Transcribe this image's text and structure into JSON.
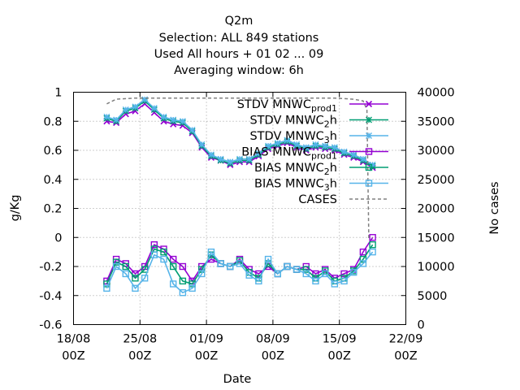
{
  "chart_data": {
    "type": "line",
    "title_lines": [
      "Q2m",
      "Selection: ALL    849 stations",
      "Used  All hours + 01 02 ... 09",
      "Averaging window:  6h"
    ],
    "xlabel": "Date",
    "ylabel": "g/Kg",
    "y2label": "No cases",
    "xlim": [
      "2024-08-18T00:00",
      "2024-09-22T00:00"
    ],
    "ylim": [
      -0.6,
      1.0
    ],
    "y2lim": [
      0,
      40000
    ],
    "x_ticks": [
      {
        "line1": "18/08",
        "line2": "00Z"
      },
      {
        "line1": "25/08",
        "line2": "00Z"
      },
      {
        "line1": "01/09",
        "line2": "00Z"
      },
      {
        "line1": "08/09",
        "line2": "00Z"
      },
      {
        "line1": "15/09",
        "line2": "00Z"
      },
      {
        "line1": "22/09",
        "line2": "00Z"
      }
    ],
    "y_ticks": [
      "-0.6",
      "-0.4",
      "-0.2",
      "0",
      "0.2",
      "0.4",
      "0.6",
      "0.8",
      "1"
    ],
    "y2_ticks": [
      "0",
      "5000",
      "10000",
      "15000",
      "20000",
      "25000",
      "30000",
      "35000",
      "40000"
    ],
    "grid": true,
    "legend_position": "top-right",
    "series": [
      {
        "name": "STDV MNWC_prod1",
        "name_base": "STDV MNWC",
        "name_sub": "prod1",
        "axis": "y",
        "color": "#9400d3",
        "marker": "x-cross",
        "x": [
          21.5,
          22.5,
          23.5,
          24.5,
          25.5,
          26.5,
          27.5,
          28.5,
          29.5,
          30.5,
          31.5,
          32.5,
          33.5,
          34.5,
          35.5,
          36.5,
          37.5,
          38.5,
          39.5,
          40.5,
          41.5,
          42.5,
          43.5,
          44.5,
          45.5,
          46.5,
          47.5,
          48.5,
          49.5
        ],
        "y": [
          0.8,
          0.79,
          0.85,
          0.87,
          0.92,
          0.86,
          0.8,
          0.78,
          0.77,
          0.72,
          0.62,
          0.55,
          0.53,
          0.5,
          0.52,
          0.52,
          0.56,
          0.61,
          0.63,
          0.65,
          0.62,
          0.6,
          0.62,
          0.61,
          0.6,
          0.57,
          0.55,
          0.52,
          0.48
        ]
      },
      {
        "name": "STDV MNWC_2h",
        "name_base": "STDV MNWC",
        "name_sub": "2",
        "name_suffix": "h",
        "axis": "y",
        "color": "#009e73",
        "marker": "star",
        "x": [
          21.5,
          22.5,
          23.5,
          24.5,
          25.5,
          26.5,
          27.5,
          28.5,
          29.5,
          30.5,
          31.5,
          32.5,
          33.5,
          34.5,
          35.5,
          36.5,
          37.5,
          38.5,
          39.5,
          40.5,
          41.5,
          42.5,
          43.5,
          44.5,
          45.5,
          46.5,
          47.5,
          48.5,
          49.5
        ],
        "y": [
          0.82,
          0.8,
          0.87,
          0.89,
          0.94,
          0.88,
          0.82,
          0.8,
          0.79,
          0.73,
          0.63,
          0.56,
          0.53,
          0.51,
          0.53,
          0.53,
          0.57,
          0.62,
          0.64,
          0.66,
          0.63,
          0.61,
          0.63,
          0.62,
          0.61,
          0.58,
          0.56,
          0.53,
          0.49
        ]
      },
      {
        "name": "STDV MNWC_3h",
        "name_base": "STDV MNWC",
        "name_sub": "3",
        "name_suffix": "h",
        "axis": "y",
        "color": "#56b4e9",
        "marker": "star",
        "x": [
          21.5,
          22.5,
          23.5,
          24.5,
          25.5,
          26.5,
          27.5,
          28.5,
          29.5,
          30.5,
          31.5,
          32.5,
          33.5,
          34.5,
          35.5,
          36.5,
          37.5,
          38.5,
          39.5,
          40.5,
          41.5,
          42.5,
          43.5,
          44.5,
          45.5,
          46.5,
          47.5,
          48.5,
          49.5
        ],
        "y": [
          0.83,
          0.81,
          0.88,
          0.9,
          0.95,
          0.89,
          0.83,
          0.81,
          0.8,
          0.74,
          0.64,
          0.57,
          0.54,
          0.52,
          0.54,
          0.54,
          0.58,
          0.63,
          0.65,
          0.67,
          0.64,
          0.62,
          0.64,
          0.63,
          0.62,
          0.59,
          0.57,
          0.54,
          0.5
        ]
      },
      {
        "name": "BIAS MNWC_prod1",
        "name_base": "BIAS MNWC",
        "name_sub": "prod1",
        "axis": "y",
        "color": "#9400d3",
        "marker": "open-square",
        "x": [
          21.5,
          22.5,
          23.5,
          24.5,
          25.5,
          26.5,
          27.5,
          28.5,
          29.5,
          30.5,
          31.5,
          32.5,
          33.5,
          34.5,
          35.5,
          36.5,
          37.5,
          38.5,
          39.5,
          40.5,
          41.5,
          42.5,
          43.5,
          44.5,
          45.5,
          46.5,
          47.5,
          48.5,
          49.5
        ],
        "y": [
          -0.3,
          -0.15,
          -0.18,
          -0.25,
          -0.2,
          -0.05,
          -0.08,
          -0.15,
          -0.2,
          -0.3,
          -0.2,
          -0.15,
          -0.18,
          -0.2,
          -0.15,
          -0.22,
          -0.25,
          -0.2,
          -0.25,
          -0.2,
          -0.22,
          -0.2,
          -0.25,
          -0.22,
          -0.28,
          -0.25,
          -0.22,
          -0.1,
          0.0
        ]
      },
      {
        "name": "BIAS MNWC_2h",
        "name_base": "BIAS MNWC",
        "name_sub": "2",
        "name_suffix": "h",
        "axis": "y",
        "color": "#009e73",
        "marker": "open-square",
        "x": [
          21.5,
          22.5,
          23.5,
          24.5,
          25.5,
          26.5,
          27.5,
          28.5,
          29.5,
          30.5,
          31.5,
          32.5,
          33.5,
          34.5,
          35.5,
          36.5,
          37.5,
          38.5,
          39.5,
          40.5,
          41.5,
          42.5,
          43.5,
          44.5,
          45.5,
          46.5,
          47.5,
          48.5,
          49.5
        ],
        "y": [
          -0.32,
          -0.17,
          -0.2,
          -0.28,
          -0.22,
          -0.08,
          -0.1,
          -0.2,
          -0.3,
          -0.32,
          -0.22,
          -0.12,
          -0.18,
          -0.2,
          -0.16,
          -0.24,
          -0.28,
          -0.18,
          -0.25,
          -0.2,
          -0.22,
          -0.22,
          -0.28,
          -0.23,
          -0.3,
          -0.28,
          -0.23,
          -0.15,
          -0.05
        ]
      },
      {
        "name": "BIAS MNWC_3h",
        "name_base": "BIAS MNWC",
        "name_sub": "3",
        "name_suffix": "h",
        "axis": "y",
        "color": "#56b4e9",
        "marker": "open-square",
        "x": [
          21.5,
          22.5,
          23.5,
          24.5,
          25.5,
          26.5,
          27.5,
          28.5,
          29.5,
          30.5,
          31.5,
          32.5,
          33.5,
          34.5,
          35.5,
          36.5,
          37.5,
          38.5,
          39.5,
          40.5,
          41.5,
          42.5,
          43.5,
          44.5,
          45.5,
          46.5,
          47.5,
          48.5,
          49.5
        ],
        "y": [
          -0.35,
          -0.2,
          -0.25,
          -0.35,
          -0.28,
          -0.12,
          -0.15,
          -0.32,
          -0.38,
          -0.35,
          -0.25,
          -0.1,
          -0.18,
          -0.2,
          -0.18,
          -0.26,
          -0.3,
          -0.15,
          -0.25,
          -0.2,
          -0.22,
          -0.25,
          -0.3,
          -0.25,
          -0.32,
          -0.3,
          -0.24,
          -0.18,
          -0.1
        ]
      },
      {
        "name": "CASES",
        "axis": "y2",
        "color": "#808080",
        "style": "dashed",
        "x": [
          21.5,
          22.5,
          24.5,
          28.5,
          33.5,
          40.5,
          45.5,
          47.5,
          48.5,
          48.9,
          49.1,
          49.5
        ],
        "y": [
          38000,
          38800,
          39000,
          39000,
          39000,
          39000,
          39000,
          38800,
          38500,
          37000,
          15000,
          15000
        ]
      }
    ]
  }
}
